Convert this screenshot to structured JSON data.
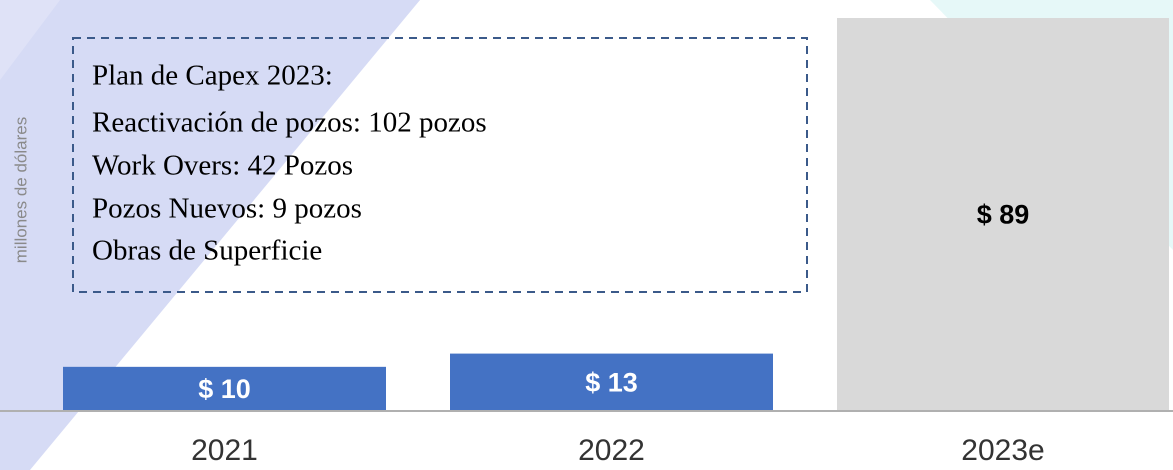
{
  "chart_data": {
    "type": "bar",
    "y_axis_label": "millones de dólares",
    "categories": [
      "2021",
      "2022",
      "2023e"
    ],
    "values": [
      10,
      13,
      89
    ],
    "value_labels": [
      "$ 10",
      "$ 13",
      "$ 89"
    ],
    "colors": [
      "#4472c4",
      "#4472c4",
      "#d9d9d9"
    ],
    "annotation": {
      "lines": [
        "Plan de Capex 2023:",
        "Reactivación de pozos: 102 pozos",
        "Work Overs: 42 Pozos",
        "Pozos Nuevos: 9 pozos",
        "Obras de Superficie"
      ]
    }
  }
}
